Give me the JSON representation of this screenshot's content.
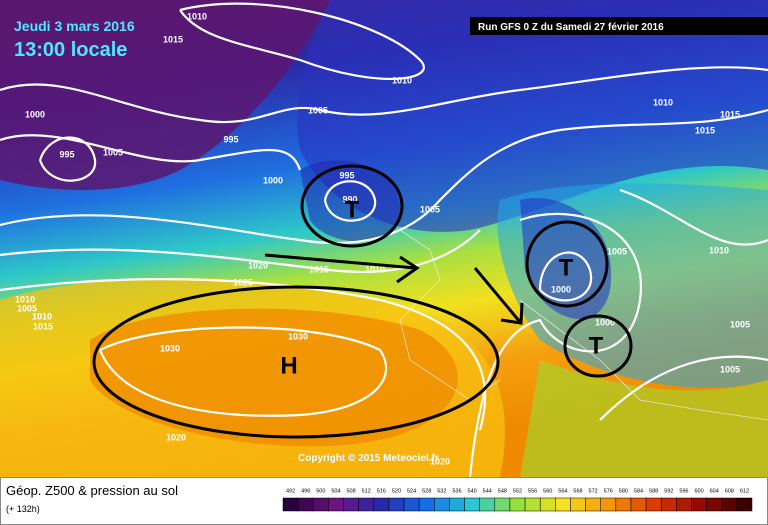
{
  "header": {
    "date": "Jeudi 3 mars 2016",
    "time": "13:00 locale",
    "run": "Run GFS 0 Z du Samedi 27 février 2016"
  },
  "copyright": "Copyright © 2015 Meteociel.fr",
  "footer": {
    "title": "Géop. Z500 & pression au sol",
    "lead": "(+ 132h)"
  },
  "systems": [
    "H",
    "T",
    "T",
    "T"
  ],
  "isobar_labels": [
    1010,
    1015,
    1010,
    1005,
    1000,
    995,
    1005,
    995,
    1000,
    995,
    990,
    1005,
    1020,
    1015,
    1010,
    1025,
    1010,
    1005,
    1010,
    1015,
    1030,
    1030,
    1020,
    1000,
    1005,
    1000,
    1010,
    1005,
    1005,
    1010,
    1015,
    1015,
    1020
  ],
  "scale": [
    492,
    496,
    500,
    504,
    508,
    512,
    516,
    520,
    524,
    528,
    532,
    536,
    540,
    544,
    548,
    552,
    556,
    560,
    564,
    568,
    572,
    576,
    580,
    584,
    588,
    592,
    596,
    600,
    604,
    608,
    612
  ]
}
